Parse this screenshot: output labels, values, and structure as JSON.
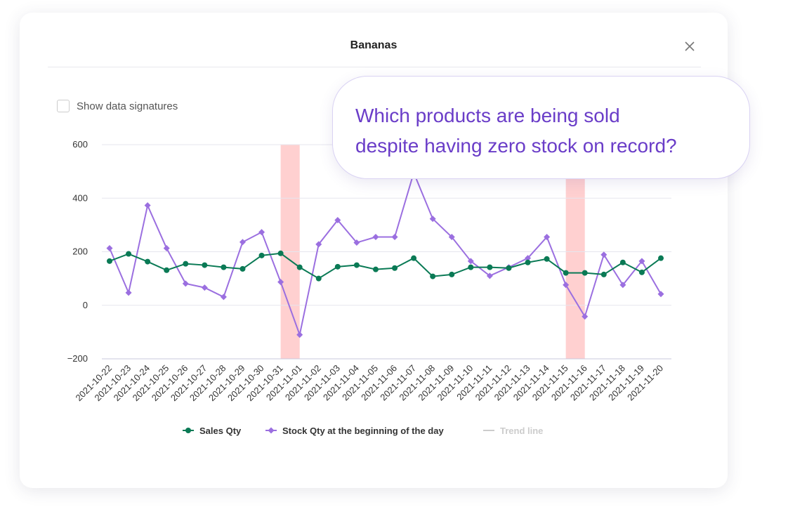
{
  "modal": {
    "title": "Bananas"
  },
  "checkbox": {
    "label": "Show data signatures"
  },
  "callout": {
    "lines": [
      "Which products are being sold",
      "despite having zero stock on record?"
    ]
  },
  "chart_data": {
    "type": "line",
    "categories": [
      "2021-10-22",
      "2021-10-23",
      "2021-10-24",
      "2021-10-25",
      "2021-10-26",
      "2021-10-27",
      "2021-10-28",
      "2021-10-29",
      "2021-10-30",
      "2021-10-31",
      "2021-11-01",
      "2021-11-02",
      "2021-11-03",
      "2021-11-04",
      "2021-11-05",
      "2021-11-06",
      "2021-11-07",
      "2021-11-08",
      "2021-11-09",
      "2021-11-10",
      "2021-11-11",
      "2021-11-12",
      "2021-11-13",
      "2021-11-14",
      "2021-11-15",
      "2021-11-16",
      "2021-11-17",
      "2021-11-18",
      "2021-11-19",
      "2021-11-20"
    ],
    "series": [
      {
        "name": "Sales Qty",
        "color": "#0a7a55",
        "marker": "circle",
        "values": [
          165,
          192,
          163,
          131,
          155,
          150,
          142,
          136,
          186,
          194,
          142,
          100,
          144,
          150,
          134,
          139,
          176,
          108,
          115,
          142,
          142,
          139,
          160,
          173,
          121,
          121,
          115,
          160,
          123,
          176
        ]
      },
      {
        "name": "Stock Qty at the beginning of the day",
        "color": "#9b6fe0",
        "marker": "diamond",
        "values": [
          213,
          47,
          373,
          213,
          81,
          66,
          31,
          236,
          273,
          87,
          -110,
          228,
          318,
          234,
          255,
          255,
          495,
          323,
          255,
          165,
          110,
          142,
          176,
          255,
          76,
          -42,
          189,
          76,
          165,
          42
        ]
      }
    ],
    "inactive_legend": [
      {
        "name": "Trend line",
        "color": "#cccccc"
      }
    ],
    "highlight_ranges": [
      [
        9,
        10
      ],
      [
        24,
        25
      ]
    ],
    "highlight_color": "#ffd0d0",
    "ylim": [
      -200,
      600
    ],
    "yticks": [
      {
        "value": -200,
        "label": "−200"
      },
      0,
      200,
      400,
      600
    ],
    "grid": true
  }
}
